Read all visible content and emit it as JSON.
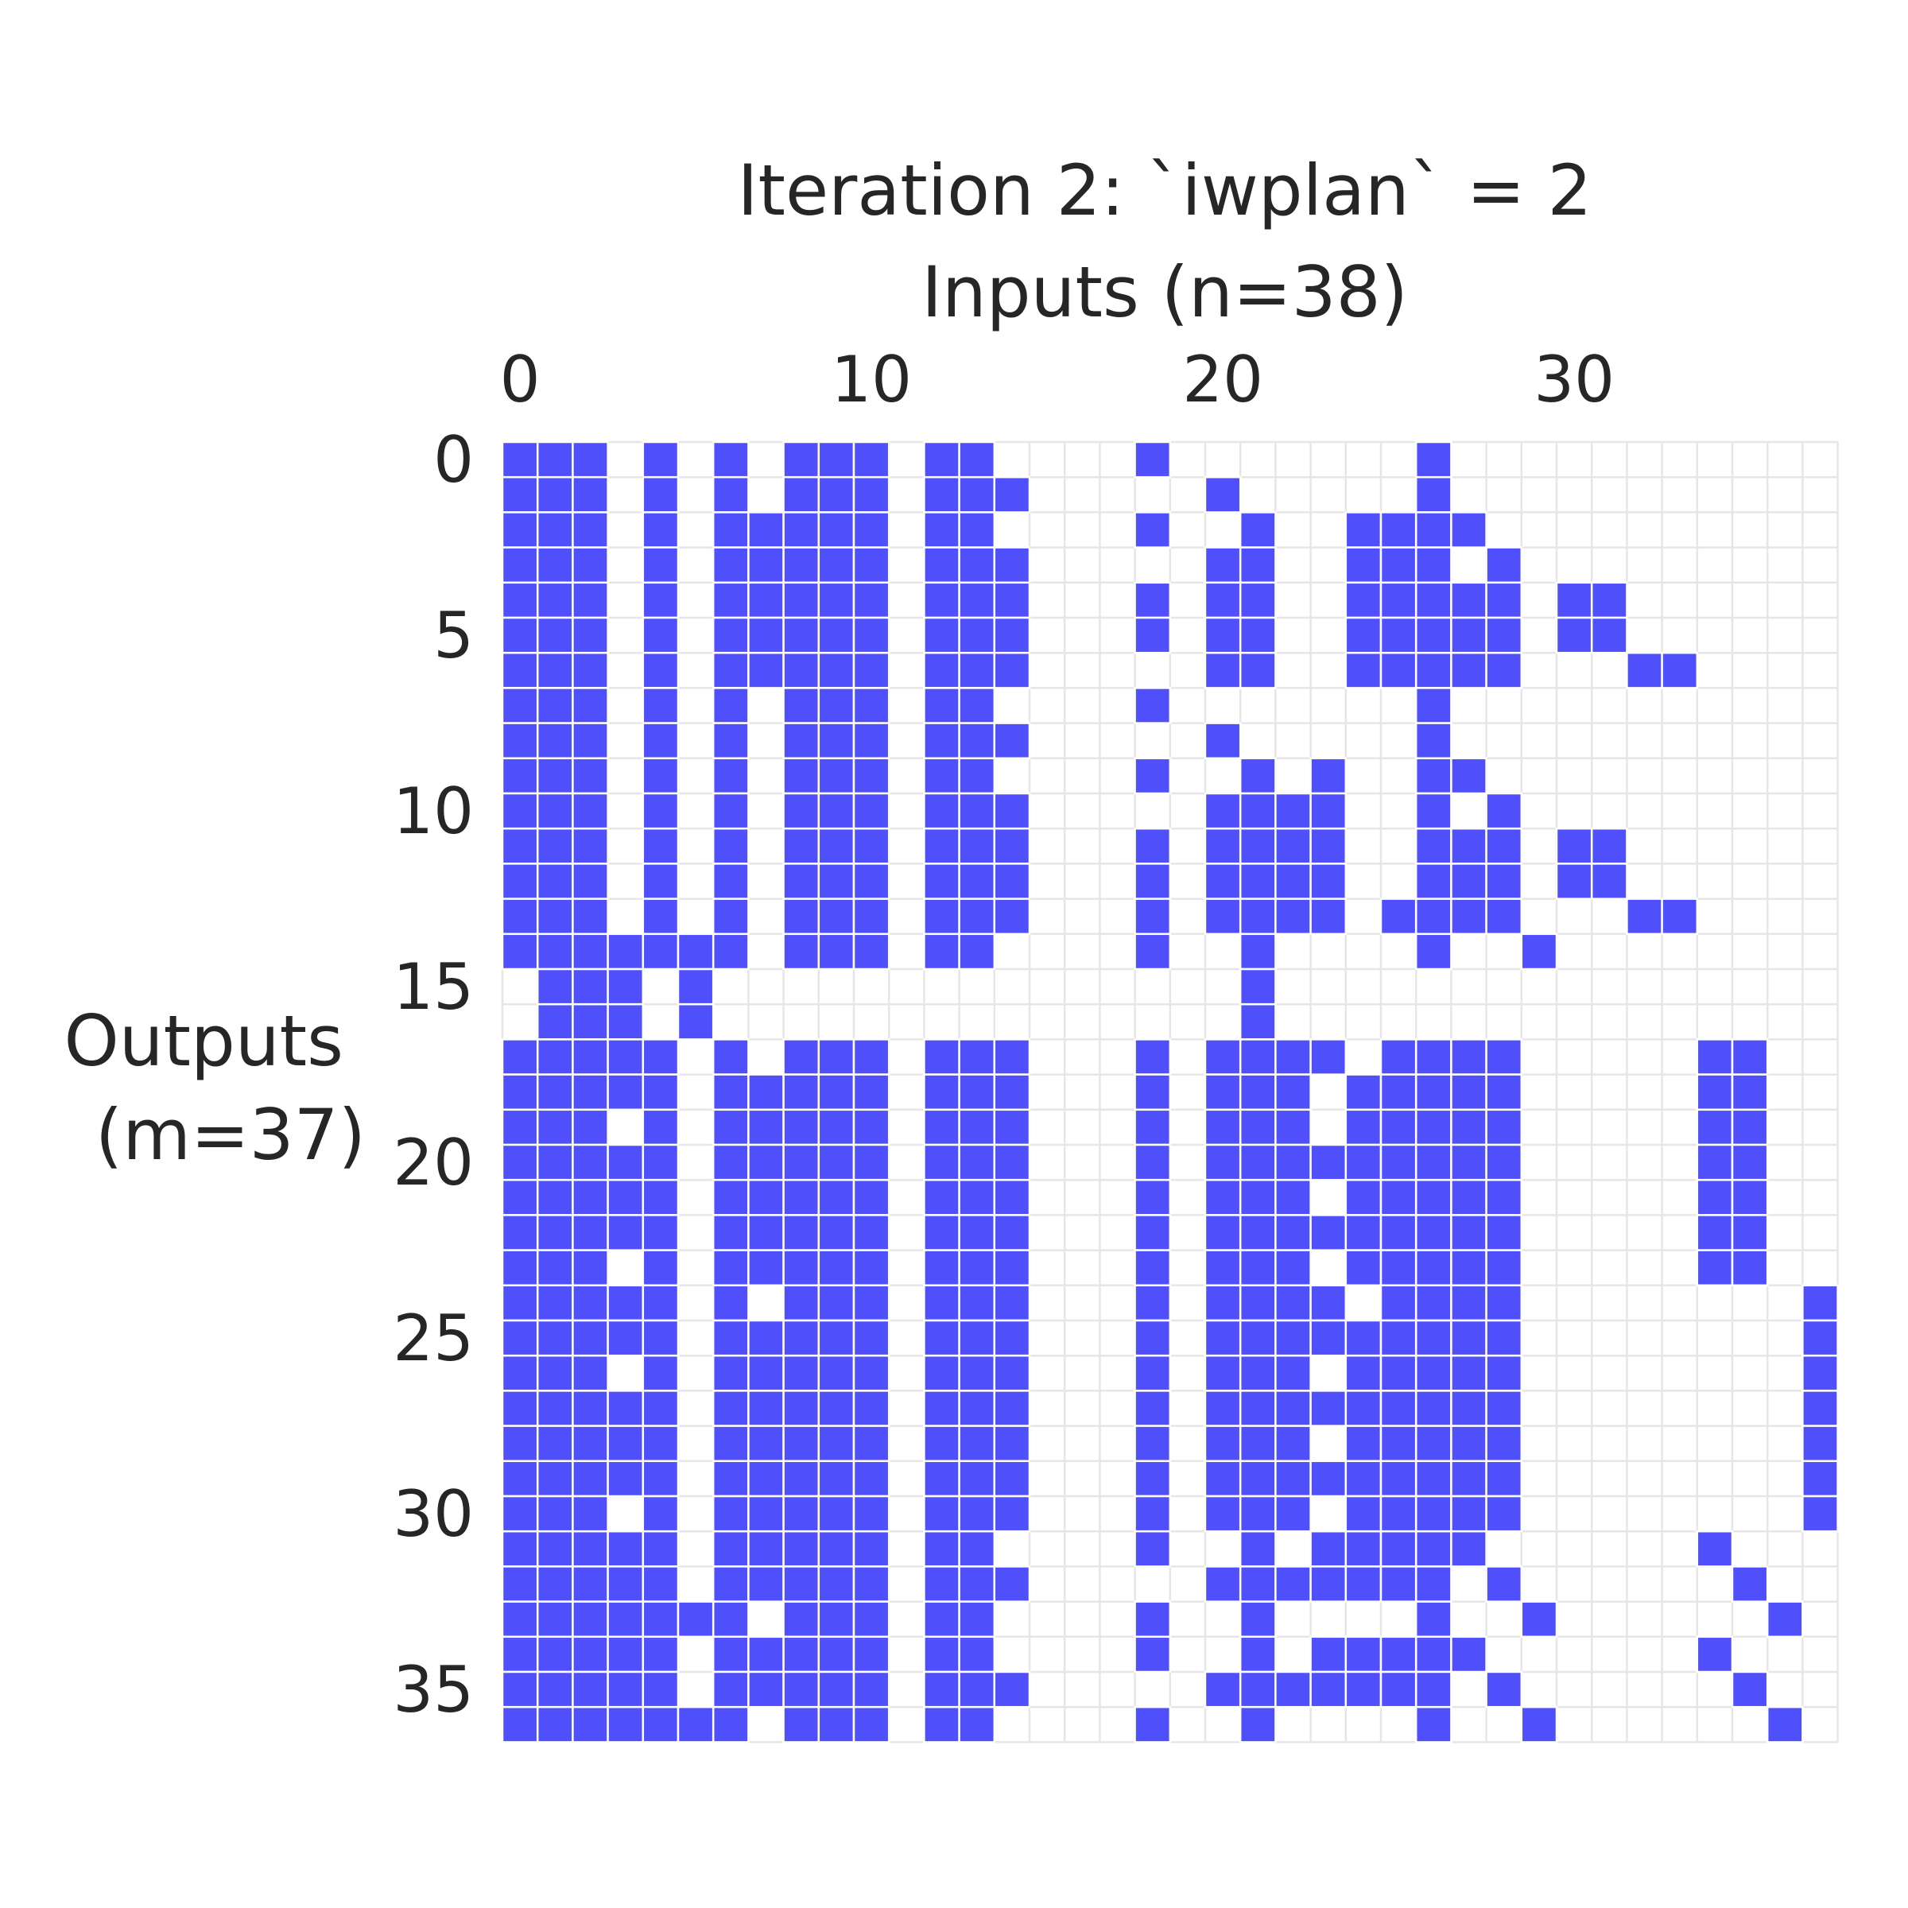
{
  "chart_data": {
    "type": "heatmap",
    "title": "Iteration 2: `iwplan` = 2",
    "xlabel": "Inputs (n=38)",
    "ylabel": "Outputs\n(m=37)",
    "n_inputs": 38,
    "m_outputs": 37,
    "xticks": [
      0,
      10,
      20,
      30
    ],
    "yticks": [
      0,
      5,
      10,
      15,
      20,
      25,
      30,
      35
    ],
    "fill_color": "#4f4ffc",
    "empty_color": "#ffffff",
    "grid_color": "#e6e6e6",
    "rows": [
      "11101010111011000010000000100000000000",
      "11101010111011100000100000100000000000",
      "11101011111011000010010011110000000000",
      "11101011111011100000110011101000000000",
      "11101011111011100010110011111011000000",
      "11101011111011100010110011111011000000",
      "11101011111011100000110011111000110000",
      "11101010111011000010000000100000000000",
      "11101010111011100000100000100000000000",
      "11101010111011000010010100110000000000",
      "11101010111011100000111100101000000000",
      "11101010111011100010111100111011000000",
      "11101010111011100010111100111011000000",
      "11101010111011100010111101111000110000",
      "11111110111011000010010000100100000000",
      "01110100000000000000010000000000000000",
      "01110100000000000000010000000000000000",
      "11111010111011100010111101111000001100",
      "11111011111011100010111011111000001100",
      "11101011111011100010111011111000001100",
      "11111011111011100010111111111000001100",
      "11111011111011100010111011111000001100",
      "11111011111011100010111111111000001100",
      "11101011111011100010111011111000001100",
      "11111010111011100010111101111000000001",
      "11111011111011100010111111111000000001",
      "11101011111011100010111011111000000001",
      "11111011111011100010111111111000000001",
      "11111011111011100010111011111000000001",
      "11111011111011100010111111111000000001",
      "11101011111011100010111011111000000001",
      "11111011111011000010010111110000001000",
      "11111011111011100000111111101000000100",
      "11111110111011000010010000100100000010",
      "11111011111011000010010111110000001000",
      "11111011111011100000111111101000000100",
      "11111110111011000010010000100100000010"
    ]
  }
}
